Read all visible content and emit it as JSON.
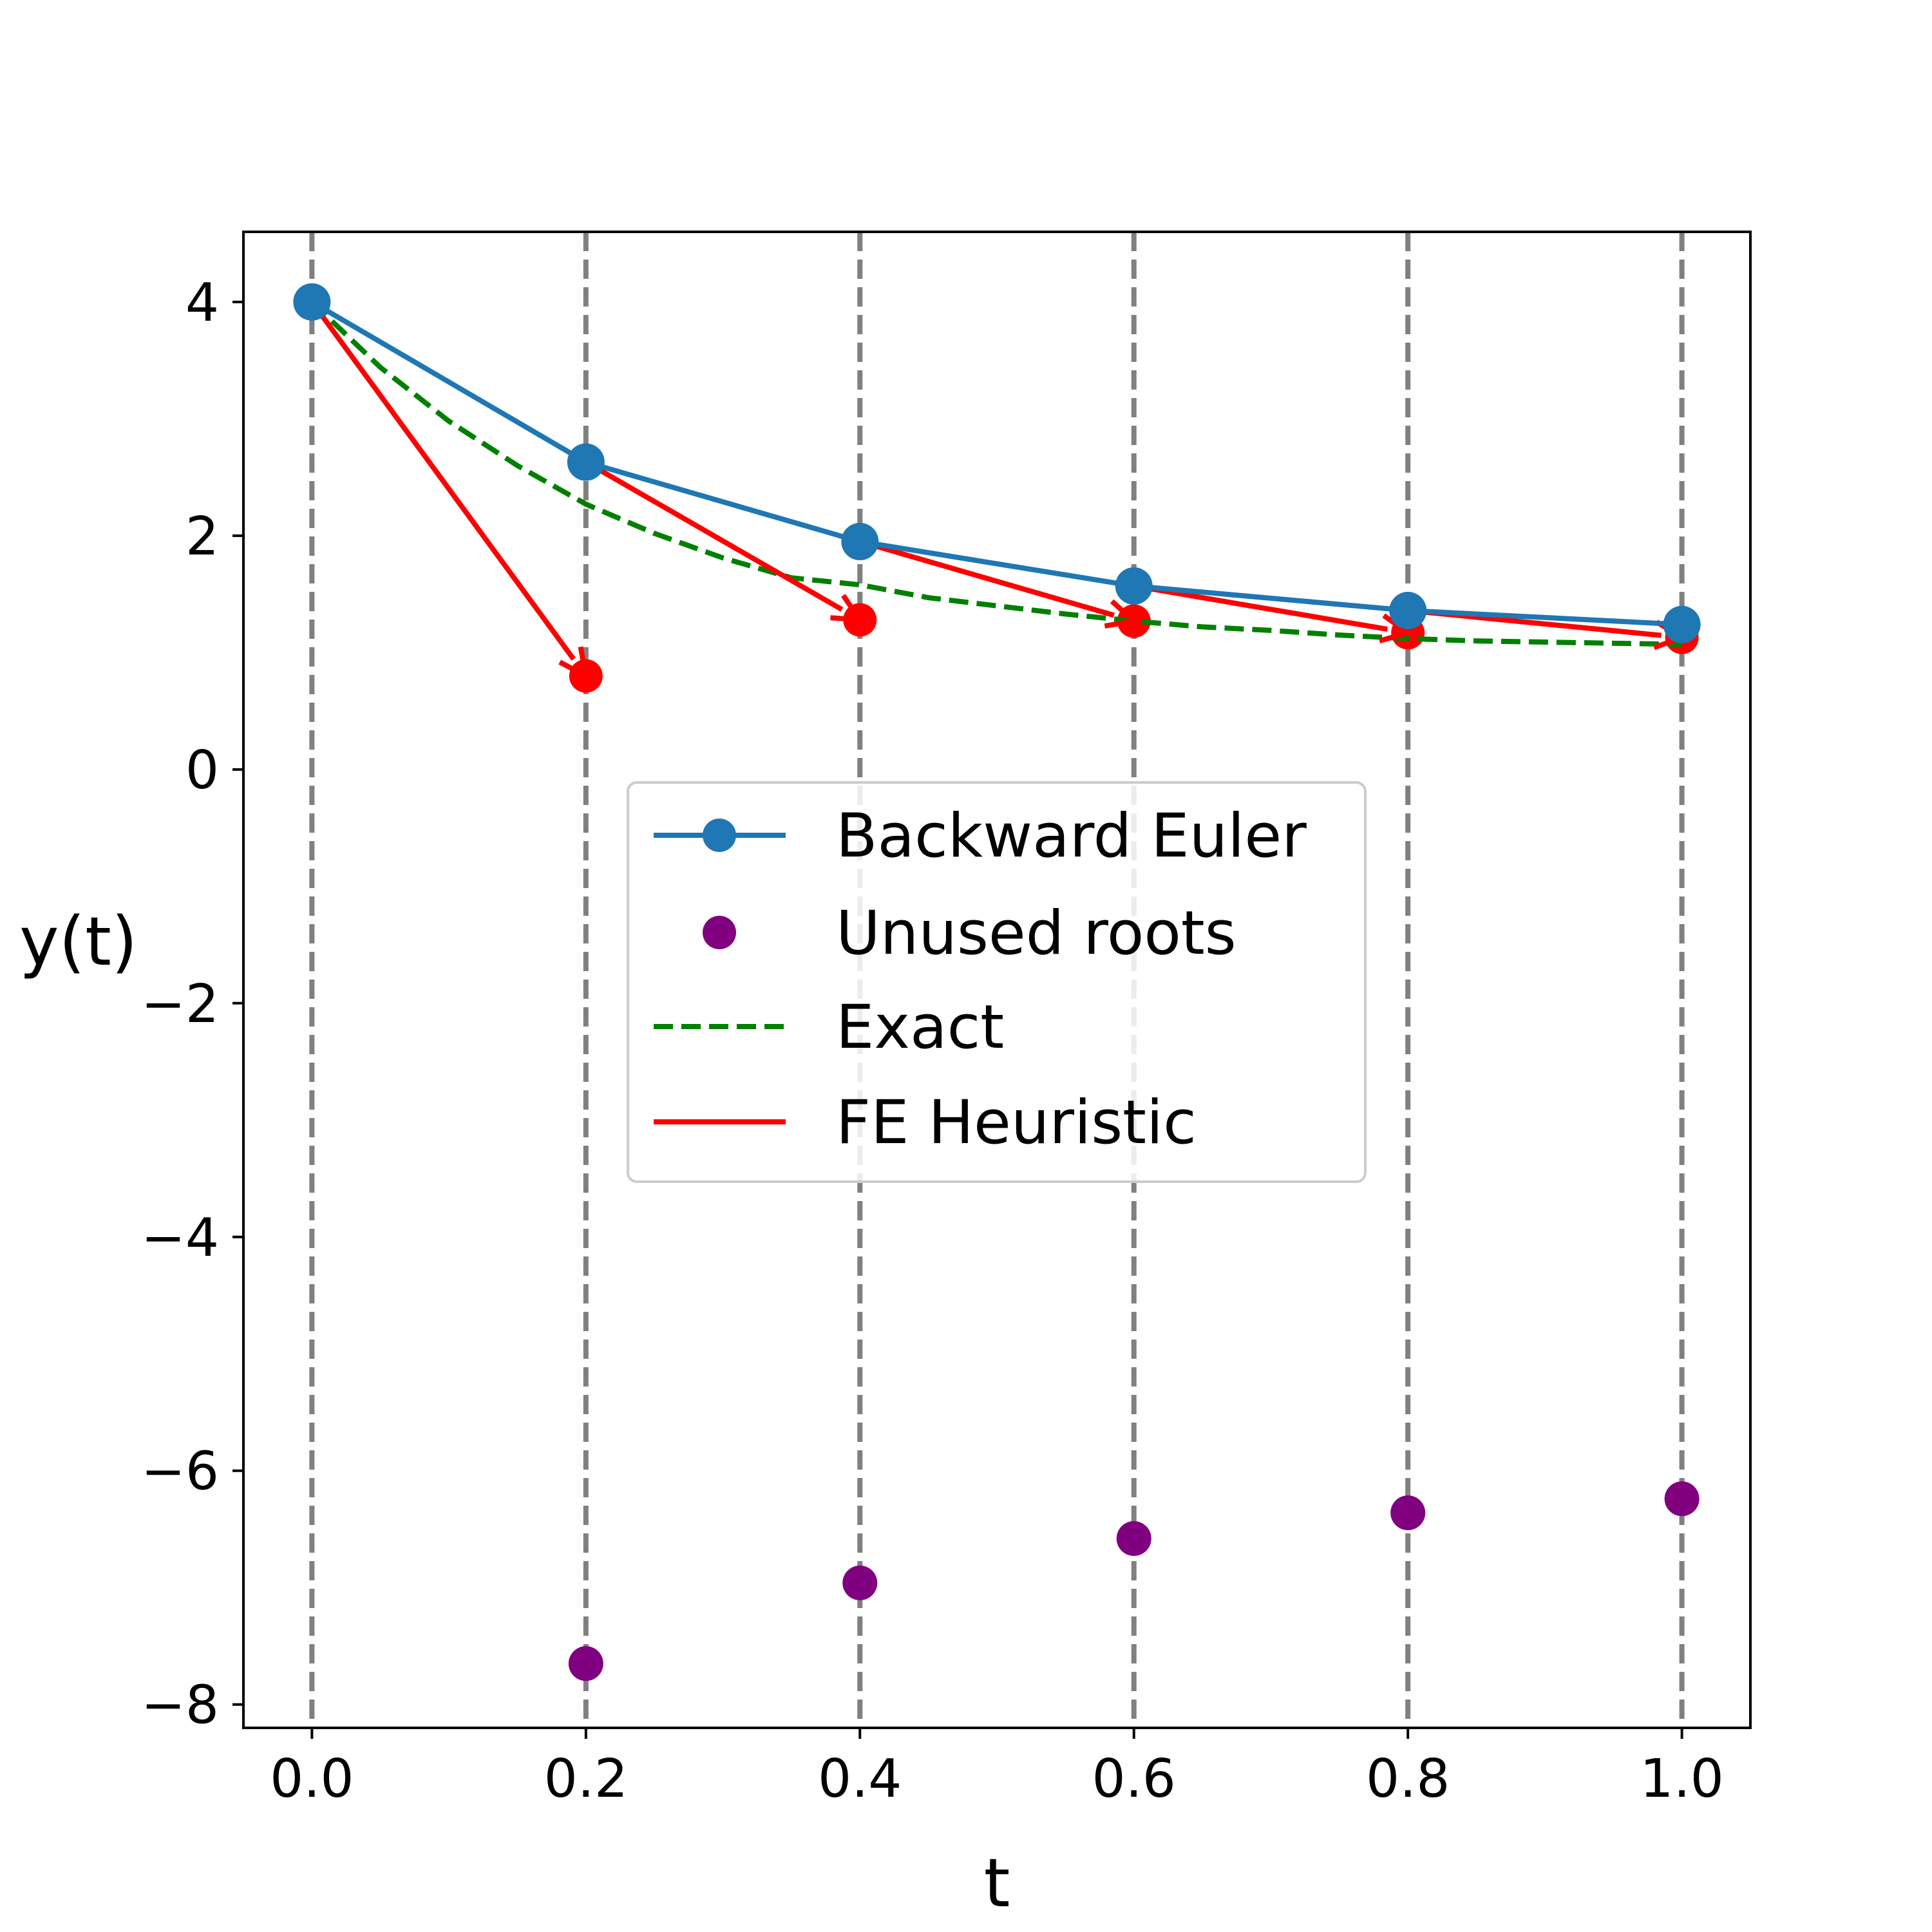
{
  "chart_data": {
    "type": "line",
    "title": "",
    "xlabel": "t",
    "ylabel": "y(t)",
    "xlim": [
      -0.05,
      1.05
    ],
    "ylim": [
      -8.2,
      4.6
    ],
    "x_ticks": [
      0.0,
      0.2,
      0.4,
      0.6,
      0.8,
      1.0
    ],
    "x_tick_labels": [
      "0.0",
      "0.2",
      "0.4",
      "0.6",
      "0.8",
      "1.0"
    ],
    "y_ticks": [
      -8,
      -6,
      -4,
      -2,
      0,
      2,
      4
    ],
    "y_tick_labels": [
      "−8",
      "−6",
      "−4",
      "−2",
      "0",
      "2",
      "4"
    ],
    "grid": false,
    "vertical_lines": {
      "x": [
        0.0,
        0.2,
        0.4,
        0.6,
        0.8,
        1.0
      ],
      "color": "#808080",
      "style": "dashed"
    },
    "legend": {
      "position": "center"
    },
    "series": [
      {
        "name": "Backward Euler",
        "kind": "line-marker",
        "color": "#1f77b4",
        "x": [
          0.0,
          0.2,
          0.4,
          0.6,
          0.8,
          1.0
        ],
        "y": [
          4.0,
          2.63,
          1.95,
          1.57,
          1.36,
          1.24
        ]
      },
      {
        "name": "Unused roots",
        "kind": "scatter",
        "color": "#800080",
        "x": [
          0.2,
          0.4,
          0.6,
          0.8,
          1.0
        ],
        "y": [
          -7.65,
          -6.96,
          -6.58,
          -6.36,
          -6.24
        ]
      },
      {
        "name": "Exact",
        "kind": "dashed-line",
        "color": "#008000",
        "x": [
          0.0,
          0.05,
          0.1,
          0.15,
          0.2,
          0.25,
          0.3,
          0.35,
          0.4,
          0.45,
          0.5,
          0.55,
          0.6,
          0.65,
          0.7,
          0.75,
          0.8,
          0.85,
          0.9,
          0.95,
          1.0
        ],
        "y": [
          4.0,
          3.44,
          2.98,
          2.6,
          2.27,
          2.02,
          1.81,
          1.64,
          1.58,
          1.47,
          1.4,
          1.33,
          1.27,
          1.22,
          1.19,
          1.15,
          1.12,
          1.1,
          1.09,
          1.08,
          1.07
        ]
      },
      {
        "name": "FE Heuristic",
        "kind": "arrows",
        "color": "#ff0000",
        "points_x": [
          0.2,
          0.4,
          0.6,
          0.8,
          1.0
        ],
        "points_y": [
          0.8,
          1.28,
          1.27,
          1.17,
          1.13
        ],
        "arrows": [
          {
            "from": [
              0.0,
              4.0
            ],
            "to": [
              0.2,
              0.8
            ]
          },
          {
            "from": [
              0.2,
              2.63
            ],
            "to": [
              0.4,
              1.28
            ]
          },
          {
            "from": [
              0.4,
              1.95
            ],
            "to": [
              0.6,
              1.27
            ]
          },
          {
            "from": [
              0.6,
              1.57
            ],
            "to": [
              0.8,
              1.17
            ]
          },
          {
            "from": [
              0.8,
              1.36
            ],
            "to": [
              1.0,
              1.13
            ]
          }
        ]
      }
    ]
  }
}
